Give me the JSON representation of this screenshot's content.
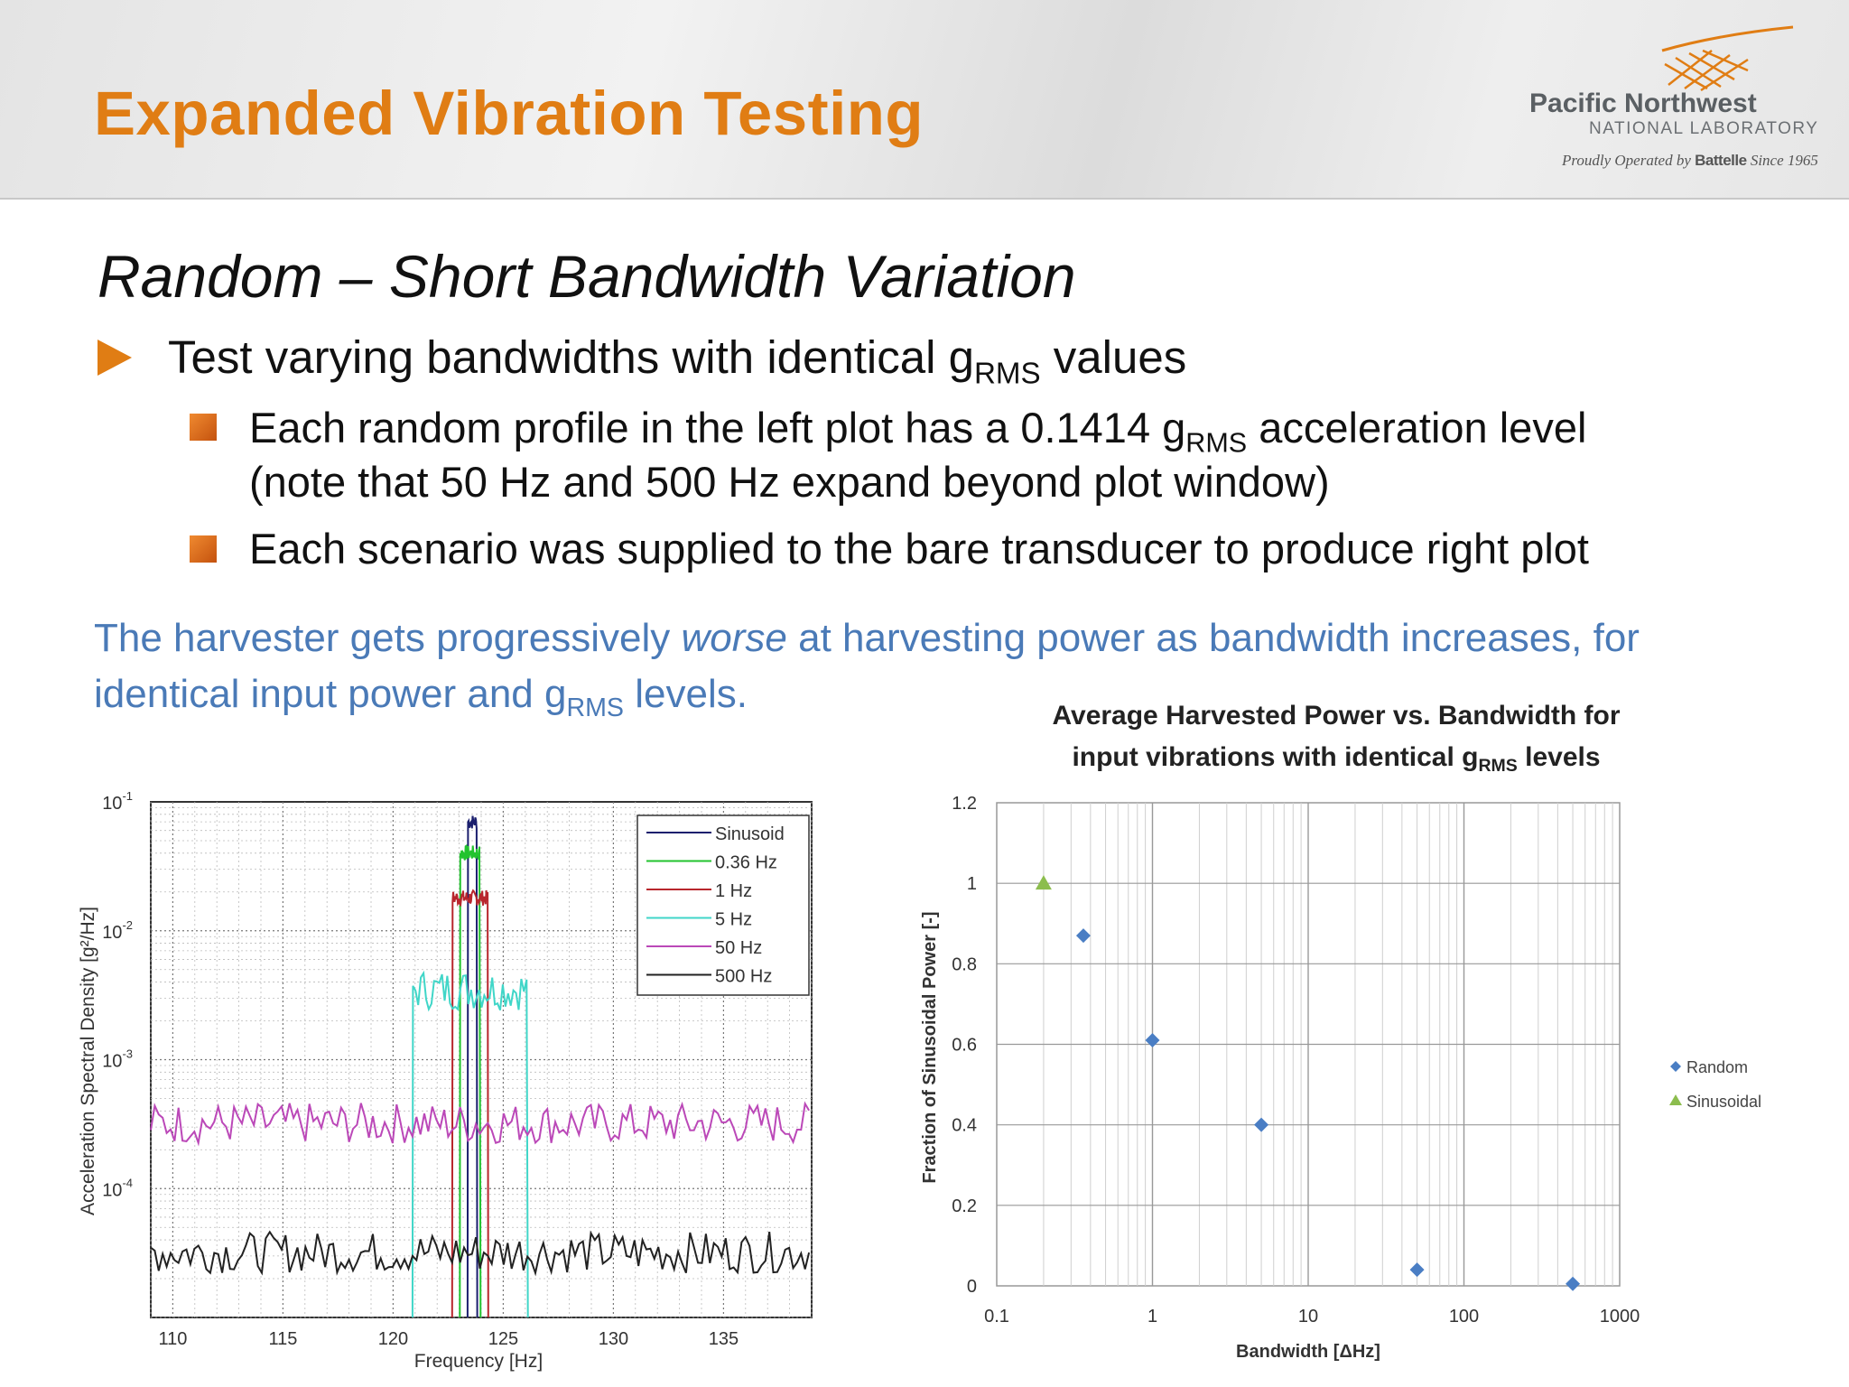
{
  "header": {
    "title": "Expanded Vibration Testing",
    "logo_main": "Pacific Northwest",
    "logo_sub": "NATIONAL LABORATORY",
    "logo_tag_prefix": "Proudly Operated by ",
    "logo_tag_brand": "Battelle",
    "logo_tag_suffix": " Since 1965"
  },
  "slide": {
    "subtitle": "Random – Short Bandwidth Variation",
    "bullet1": {
      "pre": "Test varying bandwidths with identical g",
      "sub": "RMS",
      "post": " values"
    },
    "sub_bullets": [
      {
        "pre": "Each random profile in the left plot has a 0.1414 g",
        "sub": "RMS",
        "post": " acceleration level",
        "line2": "(note that 50 Hz and 500 Hz expand beyond plot window)"
      },
      {
        "text": "Each scenario was supplied to the bare transducer to produce right plot"
      }
    ],
    "note": {
      "pre": "The harvester gets progressively ",
      "em": "worse",
      "mid": " at harvesting power as bandwidth increases, for",
      "line2_pre": "identical input power and g",
      "sub": "RMS",
      "line2_post": " levels."
    }
  },
  "chart_data": [
    {
      "type": "line",
      "ylabel": "Acceleration Spectral Density [g²/Hz]",
      "xlabel": "Frequency [Hz]",
      "xlim": [
        109,
        139
      ],
      "ylim": [
        1e-05,
        0.1
      ],
      "y_scale": "log",
      "x_ticks": [
        "110",
        "115",
        "120",
        "125",
        "130",
        "135"
      ],
      "y_ticks": [
        {
          "base": "10",
          "exp": "-1"
        },
        {
          "base": "10",
          "exp": "-2"
        },
        {
          "base": "10",
          "exp": "-3"
        },
        {
          "base": "10",
          "exp": "-4"
        }
      ],
      "grid": true,
      "legend_position": "top-right",
      "series": [
        {
          "name": "Sinusoid",
          "color": "#1b1f6e",
          "center": 123.6,
          "halfwidth": 0.2,
          "level": 0.07
        },
        {
          "name": "0.36 Hz",
          "color": "#22c32e",
          "center": 123.5,
          "halfwidth": 0.45,
          "level": 0.04
        },
        {
          "name": "1 Hz",
          "color": "#b8262d",
          "center": 123.5,
          "halfwidth": 0.8,
          "level": 0.018
        },
        {
          "name": "5 Hz",
          "color": "#40d6c8",
          "center": 123.5,
          "halfwidth": 2.6,
          "level": 0.0035
        },
        {
          "name": "50 Hz",
          "color": "#bb48b8",
          "center": 123.5,
          "halfwidth": 25,
          "level": 0.00032
        },
        {
          "name": "500 Hz",
          "color": "#222222",
          "center": 123.5,
          "halfwidth": 250,
          "level": 3.2e-05
        }
      ]
    },
    {
      "type": "scatter",
      "title_line1": "Average Harvested Power vs. Bandwidth for",
      "title_line2_pre": "input vibrations with identical g",
      "title_line2_sub": "RMS",
      "title_line2_post": " levels",
      "xlabel": "Bandwidth [ΔHz]",
      "ylabel": "Fraction of Sinusoidal Power [-]",
      "x_scale": "log",
      "xlim": [
        0.1,
        1000
      ],
      "ylim": [
        0,
        1.2
      ],
      "x_ticks": [
        "0.1",
        "1",
        "10",
        "100",
        "1000"
      ],
      "y_ticks": [
        "0",
        "0.2",
        "0.4",
        "0.6",
        "0.8",
        "1",
        "1.2"
      ],
      "grid": true,
      "legend_position": "right",
      "series": [
        {
          "name": "Random",
          "color": "#4a7ec4",
          "marker": "diamond",
          "x": [
            0.36,
            1,
            5,
            50,
            500
          ],
          "y": [
            0.87,
            0.61,
            0.4,
            0.04,
            0.005
          ]
        },
        {
          "name": "Sinusoidal",
          "color": "#8cbd4e",
          "marker": "triangle",
          "x": [
            0.2
          ],
          "y": [
            1.0
          ]
        }
      ]
    }
  ]
}
